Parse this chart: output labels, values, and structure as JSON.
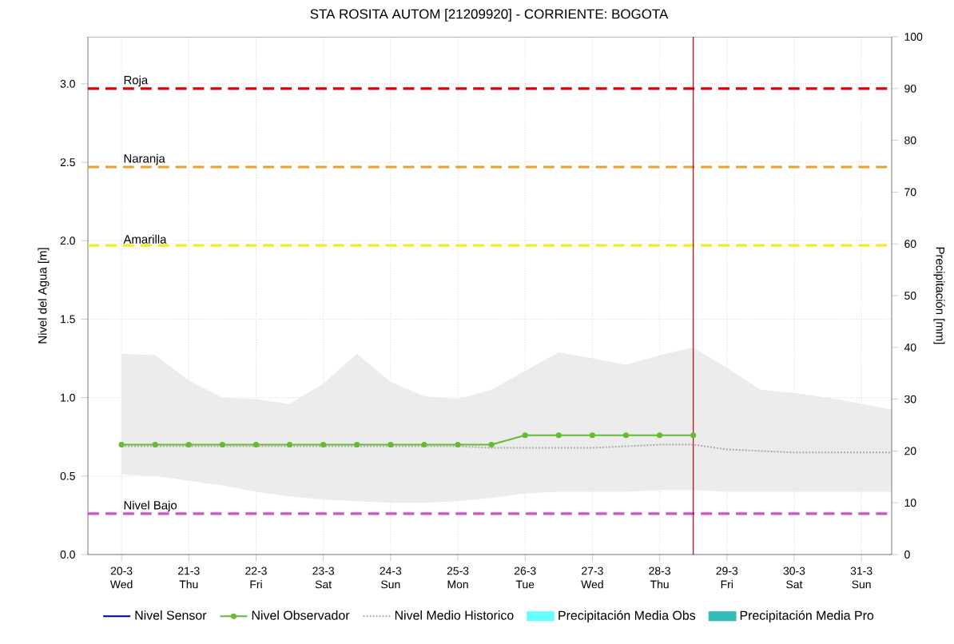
{
  "chart_data": {
    "type": "line",
    "title": "STA ROSITA AUTOM  [21209920] - CORRIENTE: BOGOTA",
    "ylabel": "Nivel del Agua [m]",
    "y2label": "Precipitación [mm]",
    "categories": [
      "20-3 Wed",
      null,
      "21-3 Thu",
      null,
      "22-3 Fri",
      null,
      "23-3 Sat",
      null,
      "24-3 Sun",
      null,
      "25-3 Mon",
      null,
      "26-3 Tue",
      null,
      "27-3 Wed",
      null,
      "28-3 Thu",
      null,
      "29-3 Fri",
      null,
      "30-3 Sat",
      null,
      "31-3 Sun",
      null
    ],
    "ylim": [
      0,
      3.3
    ],
    "yticks": [
      {
        "value": 0,
        "label": "0.0"
      },
      {
        "value": 0.5,
        "label": "0.5"
      },
      {
        "value": 1,
        "label": "1.0"
      },
      {
        "value": 1.5,
        "label": "1.5"
      },
      {
        "value": 2,
        "label": "2.0"
      },
      {
        "value": 2.5,
        "label": "2.5"
      },
      {
        "value": 3,
        "label": "3.0"
      }
    ],
    "y2lim": [
      0,
      100
    ],
    "y2ticks": [
      0,
      10,
      20,
      30,
      40,
      50,
      60,
      70,
      80,
      90,
      100
    ],
    "grid": true,
    "legend": "bottom",
    "series": [
      {
        "name": "Nivel Sensor",
        "color": "#000080",
        "values": [
          null,
          null,
          null,
          null,
          null,
          null,
          null,
          null,
          null,
          null,
          null,
          null,
          null,
          null,
          null,
          null,
          null,
          null,
          null,
          null,
          null,
          null,
          null,
          null
        ]
      },
      {
        "name": "Nivel Observador",
        "color": "#66bb33",
        "marker": "circle",
        "values": [
          0.7,
          0.7,
          0.7,
          0.7,
          0.7,
          0.7,
          0.7,
          0.7,
          0.7,
          0.7,
          0.7,
          0.7,
          0.76,
          0.76,
          0.76,
          0.76,
          0.76,
          0.76,
          null,
          null,
          null,
          null,
          null,
          null
        ]
      },
      {
        "name": "Nivel Medio Historico",
        "color": "#aaaaaa",
        "line_style": "dotted",
        "values": [
          0.69,
          0.69,
          0.69,
          0.69,
          0.69,
          0.69,
          0.69,
          0.69,
          0.69,
          0.69,
          0.69,
          0.68,
          0.68,
          0.68,
          0.68,
          0.69,
          0.7,
          0.7,
          0.67,
          0.66,
          0.65,
          0.65,
          0.65,
          0.65
        ],
        "lower": [
          0.51,
          0.5,
          0.47,
          0.44,
          0.4,
          0.37,
          0.35,
          0.34,
          0.33,
          0.33,
          0.34,
          0.36,
          0.39,
          0.4,
          0.4,
          0.4,
          0.41,
          0.41,
          0.4,
          0.4,
          0.4,
          0.4,
          0.4,
          0.4
        ],
        "upper": [
          1.28,
          1.27,
          1.11,
          1.0,
          0.99,
          0.96,
          1.09,
          1.28,
          1.1,
          1.01,
          0.99,
          1.05,
          1.17,
          1.29,
          1.25,
          1.21,
          1.27,
          1.32,
          1.19,
          1.05,
          1.03,
          1.0,
          0.96,
          0.92
        ]
      },
      {
        "name": "Precipitación Media Obs",
        "type": "bar",
        "color": "#66ffff",
        "values": [
          null,
          null,
          null,
          null,
          null,
          null,
          null,
          null,
          null,
          null,
          null,
          null,
          null,
          null,
          null,
          null,
          null,
          null,
          null,
          null,
          null,
          null,
          null,
          null
        ]
      },
      {
        "name": "Precipitación Media Pro",
        "type": "bar",
        "color": "#33bbbb",
        "values": [
          null,
          null,
          null,
          null,
          null,
          null,
          null,
          null,
          null,
          null,
          null,
          null,
          null,
          null,
          null,
          null,
          null,
          null,
          null,
          null,
          null,
          null,
          null,
          null
        ]
      }
    ],
    "ref_lines": [
      {
        "axis": "y",
        "value": 2.97,
        "label": "Roja",
        "color": "#e00000",
        "line_style": "dashed"
      },
      {
        "axis": "y",
        "value": 2.47,
        "label": "Naranja",
        "color": "#e8a030",
        "line_style": "dashed"
      },
      {
        "axis": "y",
        "value": 1.97,
        "label": "Amarilla",
        "color": "#eeee20",
        "line_style": "dashed"
      },
      {
        "axis": "y",
        "value": 0.26,
        "label": "Nivel Bajo",
        "color": "#d050d0",
        "line_style": "dashed"
      }
    ]
  }
}
